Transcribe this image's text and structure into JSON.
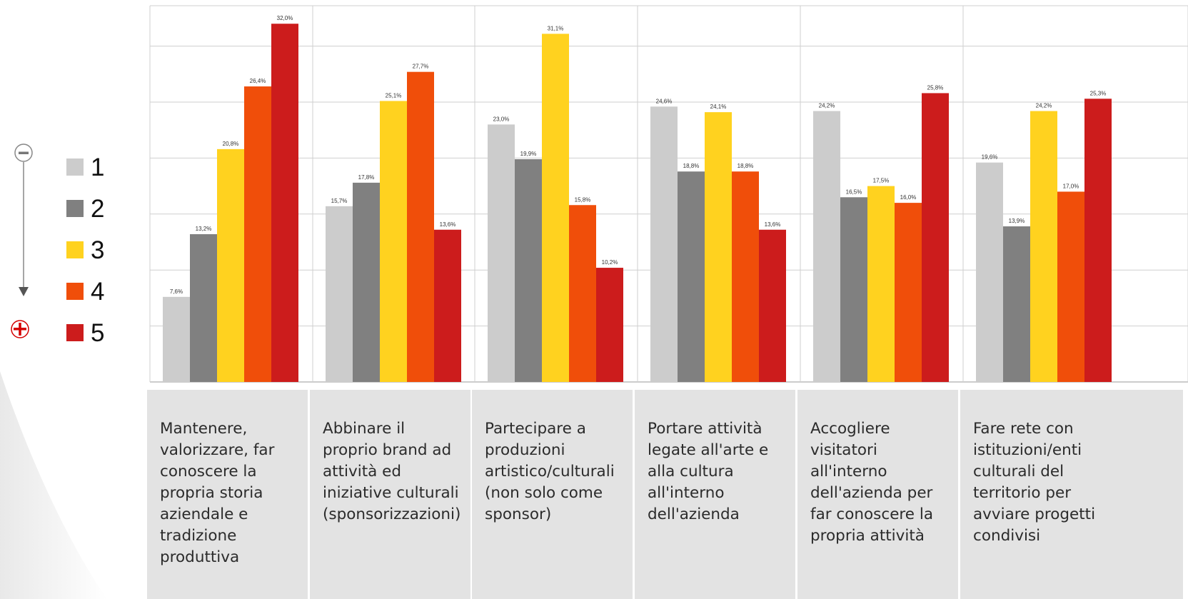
{
  "chart_data": {
    "type": "bar",
    "categories": [
      "Mantenere, valorizzare, far conoscere la propria storia aziendale e tradizione produttiva",
      "Abbinare il proprio brand ad attività ed iniziative culturali (sponsorizzazioni)",
      "Partecipare a produzioni artistico/culturali (non solo come sponsor)",
      "Portare attività legate all'arte e alla cultura all'interno dell'azienda",
      "Accogliere visitatori all'interno dell'azienda per far conoscere la propria attività",
      "Fare rete con istituzioni/enti culturali del territorio per avviare progetti condivisi"
    ],
    "category_lines": [
      [
        "Mantenere,",
        "valorizzare, far",
        "conoscere la",
        "propria storia",
        "aziendale e",
        "tradizione",
        "produttiva"
      ],
      [
        "Abbinare il",
        "proprio brand ad",
        "attività ed",
        "iniziative culturali",
        "(sponsorizzazioni)"
      ],
      [
        "Partecipare a",
        "produzioni",
        "artistico/culturali",
        "(non solo come",
        "sponsor)"
      ],
      [
        "Portare attività",
        "legate all'arte e",
        "alla cultura",
        "all'interno",
        "dell'azienda"
      ],
      [
        "Accogliere",
        "visitatori",
        "all'interno",
        "dell'azienda per",
        "far conoscere la",
        "propria attività"
      ],
      [
        "Fare rete con",
        "istituzioni/enti",
        "culturali del",
        "territorio per",
        "avviare progetti",
        "condivisi"
      ]
    ],
    "series": [
      {
        "name": "1",
        "color": "#cccccc",
        "values": [
          7.6,
          15.7,
          23.0,
          24.6,
          24.2,
          19.6
        ],
        "labels": [
          "7,6%",
          "15,7%",
          "23,0%",
          "24,6%",
          "24,2%",
          "19,6%"
        ]
      },
      {
        "name": "2",
        "color": "#808080",
        "values": [
          13.2,
          17.8,
          19.9,
          18.8,
          16.5,
          13.9
        ],
        "labels": [
          "13,2%",
          "17,8%",
          "19,9%",
          "18,8%",
          "16,5%",
          "13,9%"
        ]
      },
      {
        "name": "3",
        "color": "#ffd21f",
        "values": [
          20.8,
          25.1,
          31.1,
          24.1,
          17.5,
          24.2
        ],
        "labels": [
          "20,8%",
          "25,1%",
          "31,1%",
          "24,1%",
          "17,5%",
          "24,2%"
        ]
      },
      {
        "name": "4",
        "color": "#f04e0a",
        "values": [
          26.4,
          27.7,
          15.8,
          18.8,
          16.0,
          17.0
        ],
        "labels": [
          "26,4%",
          "27,7%",
          "15,8%",
          "18,8%",
          "16,0%",
          "17,0%"
        ]
      },
      {
        "name": "5",
        "color": "#cc1c1c",
        "values": [
          32.0,
          13.6,
          10.2,
          13.6,
          25.8,
          25.3
        ],
        "labels": [
          "32,0%",
          "13,6%",
          "10,2%",
          "13,6%",
          "25,8%",
          "25,3%"
        ]
      }
    ],
    "ylim": [
      0,
      35
    ],
    "grid": true,
    "legend_position": "left",
    "title": "",
    "xlabel": "",
    "ylabel": ""
  },
  "legend": {
    "items": [
      {
        "label": "1",
        "color": "#cccccc"
      },
      {
        "label": "2",
        "color": "#808080"
      },
      {
        "label": "3",
        "color": "#ffd21f"
      },
      {
        "label": "4",
        "color": "#f04e0a"
      },
      {
        "label": "5",
        "color": "#cc1c1c"
      }
    ]
  },
  "colors": {
    "grid": "#cfcfcf",
    "label_panel": "#e3e3e3",
    "control_minus": "#888888",
    "control_plus": "#d40000"
  },
  "icons": {
    "minus": "minus-circle-icon",
    "plus": "plus-circle-icon",
    "arrow": "arrow-down-icon"
  }
}
